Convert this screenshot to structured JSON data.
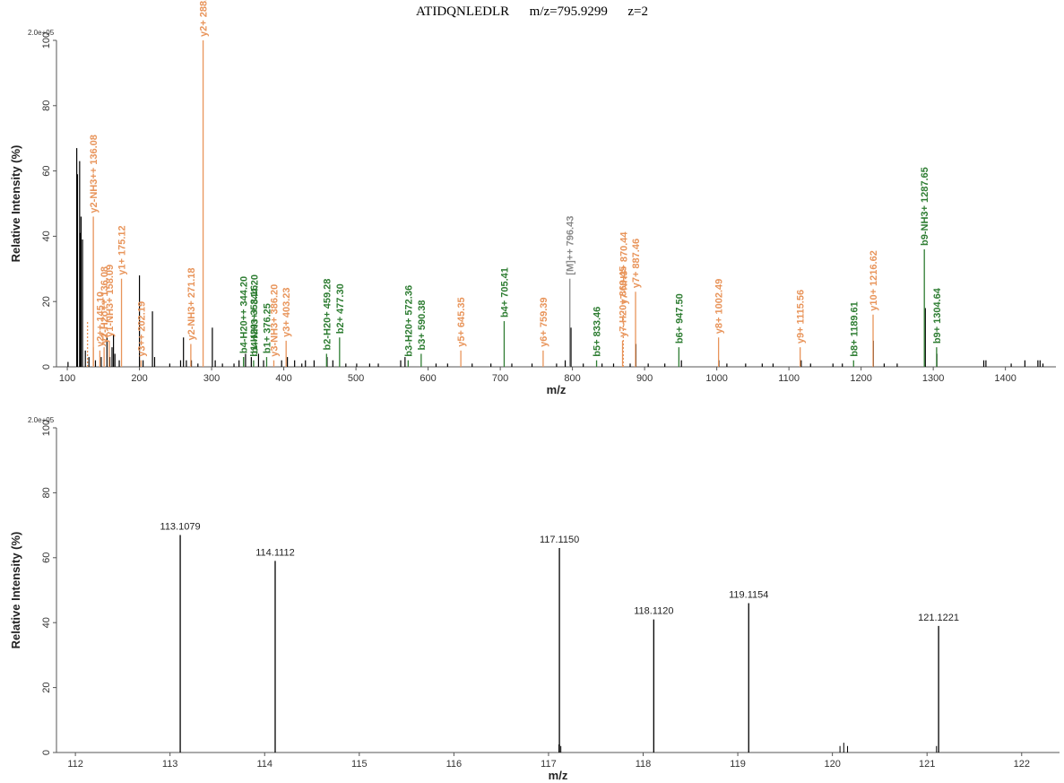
{
  "title": {
    "peptide": "ATIDQNLEDLR",
    "mz": "m/z=795.9299",
    "charge": "z=2"
  },
  "colors": {
    "y_ion": "#e8945a",
    "b_ion": "#2e7d32",
    "precursor": "#8a8a8a",
    "unassigned": "#000000",
    "axis": "#555555"
  },
  "chart_data": [
    {
      "type": "bar",
      "kind": "ms2-spectrum",
      "scale_label": "2.0e+05",
      "xlabel": "m/z",
      "ylabel": "Relative Intensity  (%)",
      "xlim": [
        85,
        1470
      ],
      "ylim": [
        0,
        100
      ],
      "xticks": [
        100,
        200,
        300,
        400,
        500,
        600,
        700,
        800,
        900,
        1000,
        1100,
        1200,
        1300,
        1400
      ],
      "yticks": [
        0,
        20,
        40,
        60,
        80,
        100
      ],
      "grid": false,
      "annotated_peaks": [
        {
          "mz": 128.0,
          "y": 14,
          "label": "",
          "type": "y",
          "dashed": true
        },
        {
          "mz": 136.08,
          "y": 46,
          "label": "y2-NH3++ 136.08",
          "type": "y"
        },
        {
          "mz": 136.08,
          "y": 6,
          "label": "y2-H2o++ 136.08",
          "type": "y"
        },
        {
          "mz": 145.1,
          "y": 5,
          "label": "y2++ 145.10",
          "type": "y"
        },
        {
          "mz": 151.0,
          "y": 6,
          "label": "y1-H",
          "type": "y"
        },
        {
          "mz": 158.09,
          "y": 8,
          "label": "y1-NH3+ 158.09",
          "type": "y"
        },
        {
          "mz": 175.12,
          "y": 27,
          "label": "y1+ 175.12",
          "type": "y"
        },
        {
          "mz": 202.19,
          "y": 2,
          "label": "y3++ 202.19",
          "type": "y"
        },
        {
          "mz": 271.18,
          "y": 7,
          "label": "y2-NH3+ 271.18",
          "type": "y"
        },
        {
          "mz": 288.2,
          "y": 100,
          "label": "y2+ 288.20",
          "type": "y"
        },
        {
          "mz": 344.2,
          "y": 3,
          "label": "b4-H20++ 344.20",
          "type": "b"
        },
        {
          "mz": 344.2,
          "y": 3,
          "label": "b4-NH3++ 344.20",
          "type": "b"
        },
        {
          "mz": 358.16,
          "y": 2,
          "label": "b1-H20+ 358.16",
          "type": "b"
        },
        {
          "mz": 376.25,
          "y": 3,
          "label": "b1+ 376.25",
          "type": "b"
        },
        {
          "mz": 386.2,
          "y": 2,
          "label": "y3-NH3+ 386.20",
          "type": "y"
        },
        {
          "mz": 403.23,
          "y": 8,
          "label": "y3+ 403.23",
          "type": "y"
        },
        {
          "mz": 459.28,
          "y": 4,
          "label": "b2-H20+ 459.28",
          "type": "b"
        },
        {
          "mz": 477.3,
          "y": 9,
          "label": "b2+ 477.30",
          "type": "b"
        },
        {
          "mz": 572.36,
          "y": 2,
          "label": "b3-H20+ 572.36",
          "type": "b"
        },
        {
          "mz": 590.38,
          "y": 4,
          "label": "b3+ 590.38",
          "type": "b"
        },
        {
          "mz": 645.35,
          "y": 5,
          "label": "y5+ 645.35",
          "type": "y"
        },
        {
          "mz": 705.41,
          "y": 14,
          "label": "b4+ 705.41",
          "type": "b"
        },
        {
          "mz": 759.39,
          "y": 5,
          "label": "y6+ 759.39",
          "type": "y"
        },
        {
          "mz": 796.43,
          "y": 27,
          "label": "[M]++ 796.43",
          "type": "precursor"
        },
        {
          "mz": 833.46,
          "y": 2,
          "label": "b5+ 833.46",
          "type": "b"
        },
        {
          "mz": 869.45,
          "y": 8,
          "label": "y7-H20+ 869.45",
          "type": "y"
        },
        {
          "mz": 870.44,
          "y": 18,
          "label": "y7-NH3+ 870.44",
          "type": "y",
          "dashed": true
        },
        {
          "mz": 887.46,
          "y": 23,
          "label": "y7+ 887.46",
          "type": "y"
        },
        {
          "mz": 947.5,
          "y": 6,
          "label": "b6+ 947.50",
          "type": "b"
        },
        {
          "mz": 1002.49,
          "y": 9,
          "label": "y8+ 1002.49",
          "type": "y"
        },
        {
          "mz": 1115.56,
          "y": 6,
          "label": "y9+ 1115.56",
          "type": "y"
        },
        {
          "mz": 1189.61,
          "y": 2,
          "label": "b8+ 1189.61",
          "type": "b"
        },
        {
          "mz": 1216.62,
          "y": 16,
          "label": "y10+ 1216.62",
          "type": "y"
        },
        {
          "mz": 1287.65,
          "y": 36,
          "label": "b9-NH3+ 1287.65",
          "type": "b"
        },
        {
          "mz": 1304.64,
          "y": 6,
          "label": "b9+ 1304.64",
          "type": "b"
        }
      ],
      "unassigned_peaks": [
        [
          101,
          1.5
        ],
        [
          113.1,
          67
        ],
        [
          114.1,
          59
        ],
        [
          117.1,
          63
        ],
        [
          118.1,
          41
        ],
        [
          119.1,
          46
        ],
        [
          121.1,
          39
        ],
        [
          125,
          5
        ],
        [
          130,
          3
        ],
        [
          139,
          2
        ],
        [
          147,
          3
        ],
        [
          155,
          9
        ],
        [
          159,
          3
        ],
        [
          162,
          6
        ],
        [
          164,
          10
        ],
        [
          166,
          4
        ],
        [
          172,
          2
        ],
        [
          200,
          28
        ],
        [
          205,
          2
        ],
        [
          218,
          17
        ],
        [
          221,
          3
        ],
        [
          242,
          1
        ],
        [
          257,
          2
        ],
        [
          261,
          9
        ],
        [
          265,
          2
        ],
        [
          272,
          2
        ],
        [
          281,
          1
        ],
        [
          301,
          12
        ],
        [
          305,
          2
        ],
        [
          315,
          1
        ],
        [
          331,
          1
        ],
        [
          338,
          2
        ],
        [
          347,
          4
        ],
        [
          355,
          3
        ],
        [
          365,
          4
        ],
        [
          372,
          2
        ],
        [
          397,
          2
        ],
        [
          405,
          3
        ],
        [
          415,
          2
        ],
        [
          425,
          1
        ],
        [
          430,
          2
        ],
        [
          442,
          2
        ],
        [
          460,
          3
        ],
        [
          468,
          2
        ],
        [
          486,
          1
        ],
        [
          501,
          1
        ],
        [
          519,
          1
        ],
        [
          531,
          1
        ],
        [
          562,
          2
        ],
        [
          568,
          3
        ],
        [
          611,
          1
        ],
        [
          627,
          1
        ],
        [
          661,
          1
        ],
        [
          687,
          1
        ],
        [
          716,
          1
        ],
        [
          744,
          1
        ],
        [
          778,
          1
        ],
        [
          790,
          2
        ],
        [
          798,
          12
        ],
        [
          815,
          1
        ],
        [
          841,
          1
        ],
        [
          857,
          1
        ],
        [
          880,
          1
        ],
        [
          888,
          7
        ],
        [
          905,
          1
        ],
        [
          928,
          1
        ],
        [
          951,
          2
        ],
        [
          1003,
          2
        ],
        [
          1014,
          1
        ],
        [
          1040,
          1
        ],
        [
          1063,
          1
        ],
        [
          1078,
          1
        ],
        [
          1117,
          2
        ],
        [
          1130,
          1
        ],
        [
          1161,
          1
        ],
        [
          1174,
          1
        ],
        [
          1217,
          8
        ],
        [
          1232,
          1
        ],
        [
          1250,
          1
        ],
        [
          1289,
          18
        ],
        [
          1305,
          4
        ],
        [
          1370,
          2
        ],
        [
          1373,
          2
        ],
        [
          1408,
          1
        ],
        [
          1427,
          2
        ],
        [
          1445,
          2
        ],
        [
          1448,
          2
        ],
        [
          1452,
          1
        ]
      ]
    },
    {
      "type": "bar",
      "kind": "reporter-ion-zoom",
      "scale_label": "2.0e+05",
      "xlabel": "m/z",
      "ylabel": "Relative Intensity  (%)",
      "xlim": [
        111.8,
        122.4
      ],
      "ylim": [
        0,
        100
      ],
      "xticks": [
        112,
        113,
        114,
        115,
        116,
        117,
        118,
        119,
        120,
        121,
        122
      ],
      "yticks": [
        0,
        20,
        40,
        60,
        80,
        100
      ],
      "grid": false,
      "peaks": [
        {
          "mz": 113.1079,
          "y": 67,
          "label": "113.1079"
        },
        {
          "mz": 114.1112,
          "y": 59,
          "label": "114.1112"
        },
        {
          "mz": 117.115,
          "y": 63,
          "label": "117.1150"
        },
        {
          "mz": 118.112,
          "y": 41,
          "label": "118.1120"
        },
        {
          "mz": 119.1154,
          "y": 46,
          "label": "119.1154"
        },
        {
          "mz": 121.1221,
          "y": 39,
          "label": "121.1221"
        }
      ],
      "minor_peaks": [
        [
          117.11,
          2.5
        ],
        [
          117.13,
          2
        ],
        [
          120.08,
          2
        ],
        [
          120.12,
          3
        ],
        [
          120.16,
          2
        ],
        [
          121.1,
          2
        ]
      ]
    }
  ]
}
